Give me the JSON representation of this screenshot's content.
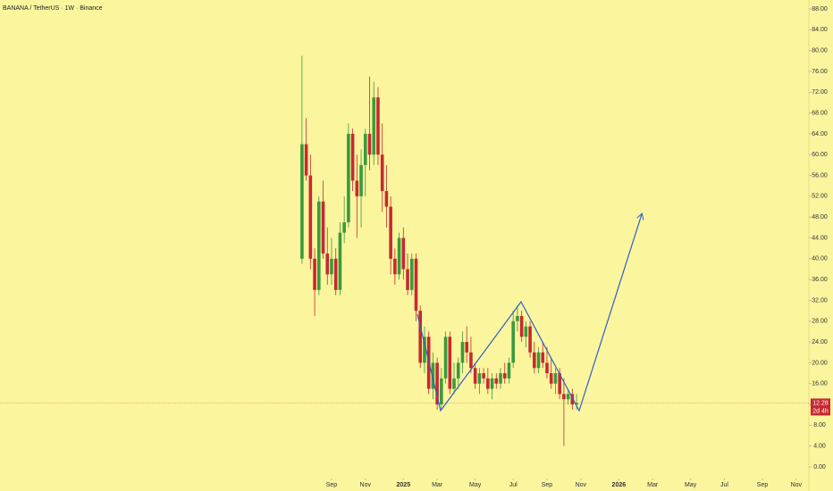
{
  "chart_data": {
    "type": "candlestick",
    "title": "BANANA / TetherUS · 1W · Binance",
    "open": [
      40,
      62,
      56,
      40,
      34,
      51,
      41,
      37,
      40,
      34,
      45,
      47,
      64,
      55,
      52,
      58,
      64,
      60,
      71,
      60,
      53,
      50,
      40,
      37,
      44,
      38,
      34,
      40,
      30,
      20,
      25,
      15,
      20,
      12,
      17,
      25,
      15,
      17,
      20,
      24,
      22,
      19,
      16,
      18,
      17,
      15,
      17,
      16,
      18,
      17,
      20,
      28,
      29,
      25,
      27,
      22,
      19,
      22,
      20,
      18,
      16,
      18,
      14,
      13,
      14,
      12
    ],
    "high": [
      79,
      67,
      60,
      42,
      52,
      55,
      46,
      44,
      42,
      47,
      52,
      66,
      65,
      60,
      61,
      65,
      75,
      74,
      73,
      66,
      58,
      52,
      42,
      45,
      46,
      41,
      41,
      41,
      31,
      27,
      26,
      22,
      21,
      19,
      26,
      26,
      20,
      21,
      26,
      27,
      25,
      20,
      19,
      19,
      19,
      18,
      18,
      19,
      20,
      21,
      30,
      31,
      30,
      28,
      28,
      24,
      23,
      24,
      23,
      21,
      19,
      19,
      17,
      15,
      15,
      14
    ],
    "low": [
      39,
      55,
      38,
      29,
      33,
      40,
      35,
      35,
      33,
      33,
      43,
      46,
      53,
      44,
      46,
      52,
      57,
      58,
      58,
      49,
      46,
      37,
      35,
      36,
      36,
      33,
      33,
      28,
      19,
      18,
      14,
      13,
      11,
      11,
      16,
      14,
      14,
      15,
      18,
      20,
      18,
      15,
      14,
      16,
      14,
      13,
      15,
      15,
      16,
      16,
      19,
      26,
      24,
      23,
      21,
      18,
      18,
      19,
      17,
      15,
      14,
      13,
      4,
      12,
      11,
      11
    ],
    "close": [
      62,
      56,
      40,
      34,
      51,
      41,
      37,
      40,
      34,
      45,
      47,
      64,
      55,
      52,
      58,
      64,
      60,
      71,
      60,
      53,
      50,
      40,
      37,
      44,
      38,
      34,
      40,
      30,
      20,
      25,
      15,
      20,
      12,
      17,
      25,
      15,
      17,
      20,
      24,
      22,
      19,
      16,
      18,
      17,
      15,
      17,
      16,
      18,
      17,
      20,
      28,
      29,
      25,
      27,
      22,
      19,
      22,
      20,
      18,
      16,
      18,
      14,
      13,
      14,
      12,
      12.28
    ],
    "up_color": "#3a9a3c",
    "down_color": "#c62a30",
    "countdown_label": "2d 4h",
    "ylim": [
      0,
      88
    ],
    "yticks": [
      {
        "value": 0,
        "label": "0.00"
      },
      {
        "value": 4,
        "label": "4.00"
      },
      {
        "value": 8,
        "label": "8.00"
      },
      {
        "value": 12,
        "label": "12.00"
      },
      {
        "value": 16,
        "label": "16.00"
      },
      {
        "value": 20,
        "label": "20.00"
      },
      {
        "value": 24,
        "label": "24.00"
      },
      {
        "value": 28,
        "label": "28.00"
      },
      {
        "value": 32,
        "label": "32.00"
      },
      {
        "value": 36,
        "label": "36.00"
      },
      {
        "value": 40,
        "label": "40.00"
      },
      {
        "value": 44,
        "label": "44.00"
      },
      {
        "value": 48,
        "label": "48.00"
      },
      {
        "value": 52,
        "label": "52.00"
      },
      {
        "value": 56,
        "label": "56.00"
      },
      {
        "value": 60,
        "label": "60.00"
      },
      {
        "value": 64,
        "label": "64.00"
      },
      {
        "value": 68,
        "label": "68.00"
      },
      {
        "value": 72,
        "label": "72.00"
      },
      {
        "value": 76,
        "label": "76.00"
      },
      {
        "value": 80,
        "label": "80.00"
      },
      {
        "value": 84,
        "label": "84.00"
      },
      {
        "value": 88,
        "label": "88.00"
      }
    ],
    "xlim": [
      -71.5,
      120
    ],
    "xticks": [
      {
        "value": 7,
        "label": "Sep"
      },
      {
        "value": 15,
        "label": "Nov"
      },
      {
        "value": 24,
        "label": "2025"
      },
      {
        "value": 32,
        "label": "Mar"
      },
      {
        "value": 41,
        "label": "May"
      },
      {
        "value": 50,
        "label": "Jul"
      },
      {
        "value": 58,
        "label": "Sep"
      },
      {
        "value": 66,
        "label": "Nov"
      },
      {
        "value": 75,
        "label": "2026"
      },
      {
        "value": 83,
        "label": "Mar"
      },
      {
        "value": 92,
        "label": "May"
      },
      {
        "value": 100,
        "label": "Jul"
      },
      {
        "value": 109,
        "label": "Sep"
      },
      {
        "value": 117,
        "label": "Nov"
      }
    ]
  }
}
